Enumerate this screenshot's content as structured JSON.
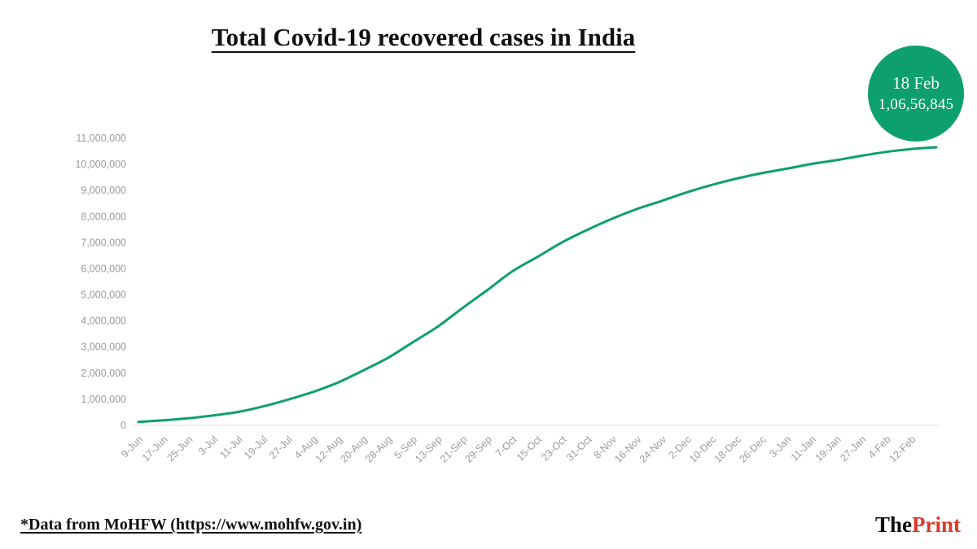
{
  "title": "Total Covid-19 recovered cases in India",
  "badge": {
    "date": "18 Feb",
    "value": "1,06,56,845"
  },
  "chart_data": {
    "type": "line",
    "title": "Total Covid-19 recovered cases in India",
    "categories": [
      "9-Jun",
      "17-Jun",
      "25-Jun",
      "3-Jul",
      "11-Jul",
      "19-Jul",
      "27-Jul",
      "4-Aug",
      "12-Aug",
      "20-Aug",
      "28-Aug",
      "5-Sep",
      "13-Sep",
      "21-Sep",
      "29-Sep",
      "7-Oct",
      "15-Oct",
      "23-Oct",
      "31-Oct",
      "8-Nov",
      "16-Nov",
      "24-Nov",
      "2-Dec",
      "10-Dec",
      "18-Dec",
      "26-Dec",
      "3-Jan",
      "11-Jan",
      "19-Jan",
      "27-Jan",
      "4-Feb",
      "12-Feb"
    ],
    "values": [
      135206,
      194325,
      271697,
      379892,
      515386,
      724578,
      988029,
      1282215,
      1639599,
      2096664,
      2583948,
      3180865,
      3780107,
      4497867,
      5187825,
      5906069,
      6453779,
      7016046,
      7491513,
      7917373,
      8292881,
      8604955,
      8931435,
      9215581,
      9456449,
      9663382,
      9834141,
      10016859,
      10162765,
      10329339,
      10480455,
      10589230
    ],
    "final_point": {
      "label": "18 Feb",
      "value": 10656845
    },
    "xlabel": "",
    "ylabel": "",
    "ylim": [
      0,
      11000000
    ],
    "ytick_step": 1000000,
    "grid": false,
    "legend": "none"
  },
  "footer": {
    "source": "*Data from MoHFW (https://www.mohfw.gov.in)",
    "logo_the": "The",
    "logo_print": "Print"
  },
  "colors": {
    "accent_green": "#0E9F6E",
    "logo_red": "#D63A2B",
    "axis_text": "#9B9B9B",
    "axis_line": "#E3E3E3"
  }
}
